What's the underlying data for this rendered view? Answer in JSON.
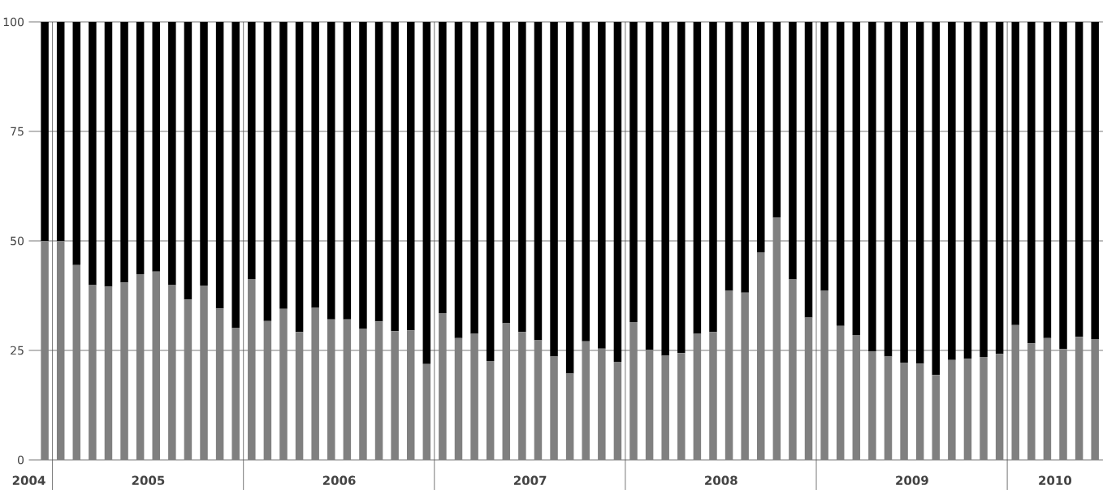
{
  "chart_data": {
    "type": "bar",
    "stacked": true,
    "grid": "y",
    "ylim": [
      0,
      100
    ],
    "yticks": [
      0,
      25,
      50,
      75,
      100
    ],
    "x": [
      "2004-12",
      "2005-01",
      "2005-02",
      "2005-03",
      "2005-04",
      "2005-05",
      "2005-06",
      "2005-07",
      "2005-08",
      "2005-09",
      "2005-10",
      "2005-11",
      "2005-12",
      "2006-01",
      "2006-02",
      "2006-03",
      "2006-04",
      "2006-05",
      "2006-06",
      "2006-07",
      "2006-08",
      "2006-09",
      "2006-10",
      "2006-11",
      "2006-12",
      "2007-01",
      "2007-02",
      "2007-03",
      "2007-04",
      "2007-05",
      "2007-06",
      "2007-07",
      "2007-08",
      "2007-09",
      "2007-10",
      "2007-11",
      "2007-12",
      "2008-01",
      "2008-02",
      "2008-03",
      "2008-04",
      "2008-05",
      "2008-06",
      "2008-07",
      "2008-08",
      "2008-09",
      "2008-10",
      "2008-11",
      "2008-12",
      "2009-01",
      "2009-02",
      "2009-03",
      "2009-04",
      "2009-05",
      "2009-06",
      "2009-07",
      "2009-08",
      "2009-09",
      "2009-10",
      "2009-11",
      "2009-12",
      "2010-01",
      "2010-02",
      "2010-03",
      "2010-04",
      "2010-05",
      "2010-06"
    ],
    "xlim": [
      "2004-11",
      "2010-06-16"
    ],
    "xticks": [
      {
        "value": "2004-11",
        "label": "2004"
      },
      {
        "value": "2005-06-16",
        "label": "2005"
      },
      {
        "value": "2006-06-16",
        "label": "2006"
      },
      {
        "value": "2007-06-16",
        "label": "2007"
      },
      {
        "value": "2008-06-16",
        "label": "2008"
      },
      {
        "value": "2009-06-16",
        "label": "2009"
      },
      {
        "value": "2010-03-16",
        "label": "2010"
      }
    ],
    "ref_lines": [
      {
        "axis": "x",
        "value": "2004-12-16"
      },
      {
        "axis": "x",
        "value": "2005-12-16"
      },
      {
        "axis": "x",
        "value": "2006-12-16"
      },
      {
        "axis": "x",
        "value": "2007-12-16"
      },
      {
        "axis": "x",
        "value": "2008-12-16"
      },
      {
        "axis": "x",
        "value": "2009-12-16"
      }
    ],
    "series": [
      {
        "color": "#808080",
        "values": [
          50,
          50,
          44.5,
          39.9,
          39.6,
          40.5,
          42.4,
          43,
          39.9,
          36.6,
          39.8,
          34.6,
          30.1,
          41.3,
          31.7,
          34.5,
          29.2,
          34.7,
          32.1,
          32.1,
          29.9,
          31.6,
          29.4,
          29.6,
          21.9,
          33.5,
          27.8,
          28.8,
          22.6,
          31.2,
          29.2,
          27.3,
          23.6,
          19.7,
          27.1,
          25.4,
          22.4,
          31.5,
          25.2,
          23.8,
          24.4,
          28.8,
          29.2,
          38.6,
          38.2,
          47.4,
          55.3,
          41.2,
          32.5,
          38.6,
          30.6,
          28.5,
          24.8,
          23.6,
          22.2,
          22,
          19.4,
          22.8,
          23.1,
          23.5,
          24.2,
          30.8,
          26.6,
          27.8,
          25.3,
          28.1,
          27.6
        ]
      },
      {
        "color": "#000000",
        "values": [
          50,
          50,
          55.5,
          60.1,
          60.4,
          59.5,
          57.6,
          57,
          60.1,
          63.4,
          60.2,
          65.4,
          69.9,
          58.7,
          68.3,
          65.5,
          70.8,
          65.3,
          67.9,
          67.9,
          70.1,
          68.4,
          70.6,
          70.4,
          78.1,
          66.5,
          72.2,
          71.2,
          77.4,
          68.8,
          70.8,
          72.7,
          76.4,
          80.3,
          72.9,
          74.6,
          77.6,
          68.5,
          74.8,
          76.2,
          75.6,
          71.2,
          70.8,
          61.4,
          61.8,
          52.6,
          44.7,
          58.8,
          67.5,
          61.4,
          69.4,
          71.5,
          75.2,
          76.4,
          77.8,
          78,
          80.6,
          77.2,
          76.9,
          76.5,
          75.8,
          69.2,
          73.4,
          72.2,
          74.7,
          71.9,
          72.4
        ]
      }
    ]
  }
}
